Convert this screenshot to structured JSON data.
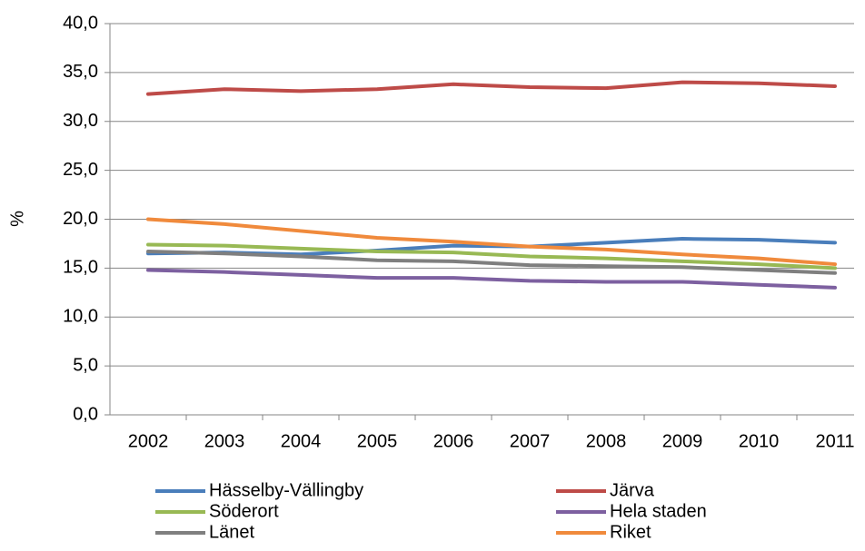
{
  "chart_data": {
    "type": "line",
    "y_label": "%",
    "categories": [
      "2002",
      "2003",
      "2004",
      "2005",
      "2006",
      "2007",
      "2008",
      "2009",
      "2010",
      "2011"
    ],
    "series": [
      {
        "name": "Hässelby-Vällingby",
        "color": "#4a7ebb",
        "values": [
          16.5,
          16.6,
          16.4,
          16.8,
          17.3,
          17.2,
          17.6,
          18.0,
          17.9,
          17.6
        ]
      },
      {
        "name": "Järva",
        "color": "#be4b48",
        "values": [
          32.8,
          33.3,
          33.1,
          33.3,
          33.8,
          33.5,
          33.4,
          34.0,
          33.9,
          33.6
        ]
      },
      {
        "name": "Söderort",
        "color": "#98b954",
        "values": [
          17.4,
          17.3,
          17.0,
          16.7,
          16.6,
          16.2,
          16.0,
          15.7,
          15.4,
          15.0
        ]
      },
      {
        "name": "Hela staden",
        "color": "#7d60a0",
        "values": [
          14.8,
          14.6,
          14.3,
          14.0,
          14.0,
          13.7,
          13.6,
          13.6,
          13.3,
          13.0
        ]
      },
      {
        "name": "Länet",
        "color": "#7f7f7f",
        "values": [
          16.7,
          16.5,
          16.2,
          15.8,
          15.7,
          15.3,
          15.2,
          15.1,
          14.8,
          14.5
        ]
      },
      {
        "name": "Riket",
        "color": "#f08a3c",
        "values": [
          20.0,
          19.5,
          18.8,
          18.1,
          17.7,
          17.2,
          16.9,
          16.4,
          16.0,
          15.4
        ]
      }
    ],
    "ylim": [
      0,
      40
    ],
    "yticks": [
      {
        "value": 0,
        "label": "0,0"
      },
      {
        "value": 5,
        "label": "5,0"
      },
      {
        "value": 10,
        "label": "10,0"
      },
      {
        "value": 15,
        "label": "15,0"
      },
      {
        "value": 20,
        "label": "20,0"
      },
      {
        "value": 25,
        "label": "25,0"
      },
      {
        "value": 30,
        "label": "30,0"
      },
      {
        "value": 35,
        "label": "35,0"
      },
      {
        "value": 40,
        "label": "40,0"
      }
    ],
    "grid": true,
    "legend": "bottom"
  }
}
